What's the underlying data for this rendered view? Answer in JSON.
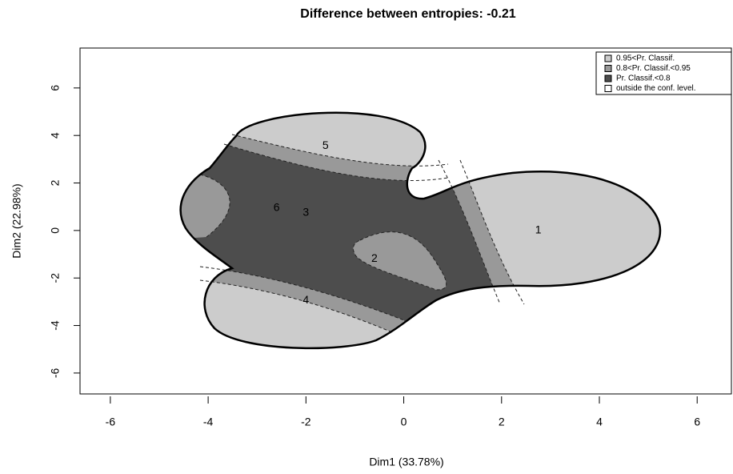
{
  "chart_data": {
    "type": "scatter",
    "title": "Difference between entropies: -0.21",
    "x_label": "Dim1 (33.78%)",
    "y_label": "Dim2 (22.98%)",
    "x": [
      2.75,
      -0.6,
      -2.0,
      -2.0,
      -1.6,
      -2.6
    ],
    "y": [
      0.0,
      -1.2,
      0.75,
      -2.95,
      3.55,
      0.95
    ],
    "labels": [
      "1",
      "2",
      "3",
      "4",
      "5",
      "6"
    ],
    "xlim": [
      -6.62,
      6.7
    ],
    "ylim": [
      -6.88,
      7.68
    ],
    "xticks": [
      -6,
      -4,
      -2,
      0,
      2,
      4,
      6
    ],
    "yticks": [
      -6,
      -4,
      -2,
      0,
      2,
      4,
      6
    ],
    "legend": {
      "position": "top-right",
      "entries": [
        {
          "label": "0.95<Pr. Classif.",
          "color": "#cccccc"
        },
        {
          "label": "0.8<Pr. Classif.<0.95",
          "color": "#999999"
        },
        {
          "label": "Pr. Classif.<0.8",
          "color": "#4d4d4d"
        },
        {
          "label": "outside the conf. level.",
          "color": "#ffffff"
        }
      ]
    }
  }
}
